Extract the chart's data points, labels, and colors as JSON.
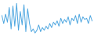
{
  "values": [
    30,
    18,
    32,
    20,
    42,
    10,
    44,
    14,
    48,
    8,
    36,
    16,
    46,
    6,
    40,
    18,
    6,
    10,
    4,
    8,
    16,
    6,
    12,
    8,
    14,
    10,
    18,
    12,
    20,
    16,
    22,
    14,
    26,
    18,
    24,
    20,
    28,
    16,
    26,
    22,
    30,
    18,
    32,
    20,
    28,
    24,
    26,
    18,
    30,
    22
  ],
  "line_color": "#4da6e0",
  "background_color": "#ffffff",
  "linewidth": 0.7,
  "ylim_min": 2,
  "ylim_max": 52
}
